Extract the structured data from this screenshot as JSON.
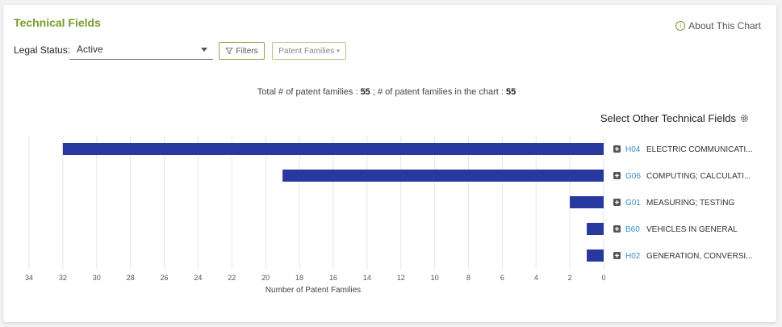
{
  "header": {
    "title": "Technical Fields",
    "about": "About This Chart"
  },
  "controls": {
    "legal_status_label": "Legal Status:",
    "legal_status_value": "Active",
    "filters_label": "Filters",
    "patent_families_label": "Patent Families"
  },
  "summary": {
    "total_label": "Total # of patent families : ",
    "total_value": "55",
    "sep": " ; ",
    "chart_label": "# of patent families in the chart : ",
    "chart_value": "55"
  },
  "select_other": "Select Other Technical Fields",
  "colors": {
    "bar": "#27399f",
    "title": "#7a9a2c",
    "code": "#3a8fc7"
  },
  "chart_data": {
    "type": "bar",
    "orientation": "horizontal",
    "x_reversed": true,
    "categories": [
      {
        "code": "H04",
        "name": "ELECTRIC COMMUNICATI..."
      },
      {
        "code": "G06",
        "name": "COMPUTING; CALCULATI..."
      },
      {
        "code": "G01",
        "name": "MEASURING; TESTING"
      },
      {
        "code": "B60",
        "name": "VEHICLES IN GENERAL"
      },
      {
        "code": "H02",
        "name": "GENERATION, CONVERSI..."
      }
    ],
    "values": [
      32,
      19,
      2,
      1,
      1
    ],
    "xlabel": "Number of Patent Families",
    "xlim": [
      0,
      34
    ],
    "xticks": [
      "34",
      "32",
      "30",
      "28",
      "26",
      "24",
      "22",
      "20",
      "18",
      "16",
      "14",
      "12",
      "10",
      "8",
      "6",
      "4",
      "2",
      "0"
    ],
    "grid": true
  }
}
